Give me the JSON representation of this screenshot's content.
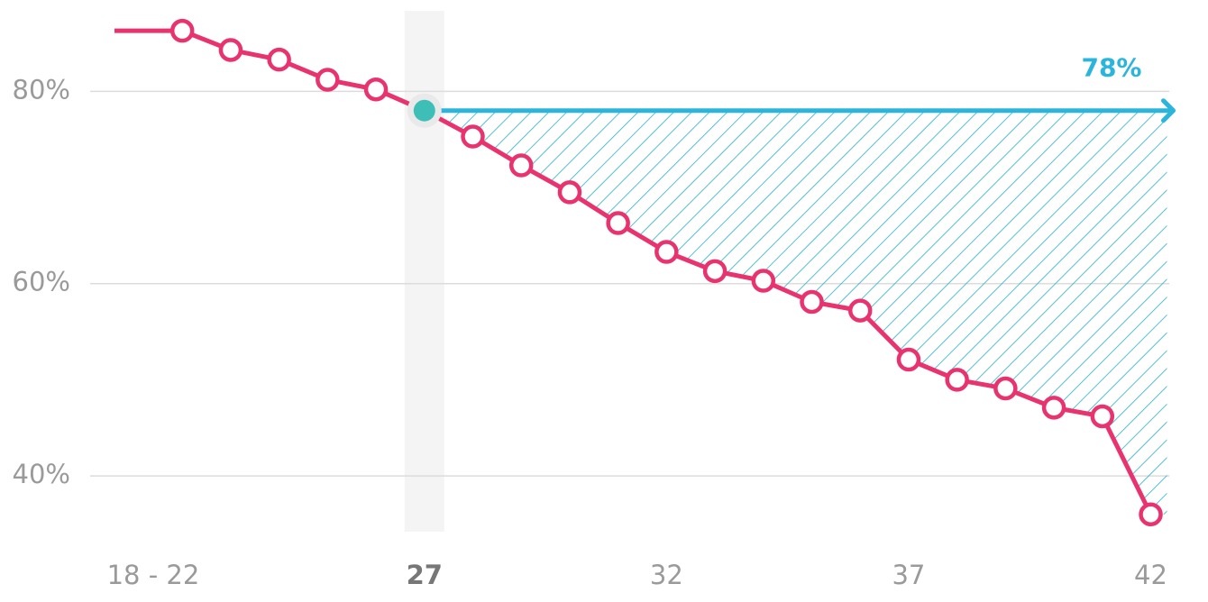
{
  "chart_data": {
    "type": "line",
    "x": [
      22,
      23,
      24,
      25,
      26,
      27,
      28,
      29,
      30,
      31,
      32,
      33,
      34,
      35,
      36,
      37,
      38,
      39,
      40,
      41,
      42
    ],
    "y": [
      86.3,
      84.3,
      83.3,
      81.2,
      80.2,
      78,
      75.3,
      72.3,
      69.5,
      66.3,
      63.3,
      61.3,
      60.3,
      58.1,
      57.2,
      52.1,
      50.0,
      49.1,
      47.1,
      46.2,
      36.0
    ],
    "color": "#e8336e",
    "xlim": [
      20.6,
      42.4
    ],
    "xticks": [
      {
        "value": 21.4,
        "label": "18 - 22"
      },
      27,
      32,
      37,
      42
    ],
    "ylim": [
      34.2,
      89.5
    ],
    "yticks": [
      {
        "value": 40,
        "label": "40%"
      },
      {
        "value": 60,
        "label": "60%"
      },
      {
        "value": 80,
        "label": "80%"
      }
    ],
    "grid": true,
    "highlight": {
      "x": 27,
      "value": 78,
      "label": "78%",
      "color": "#2bb5dc",
      "point_color": "#3dbfb8"
    }
  }
}
